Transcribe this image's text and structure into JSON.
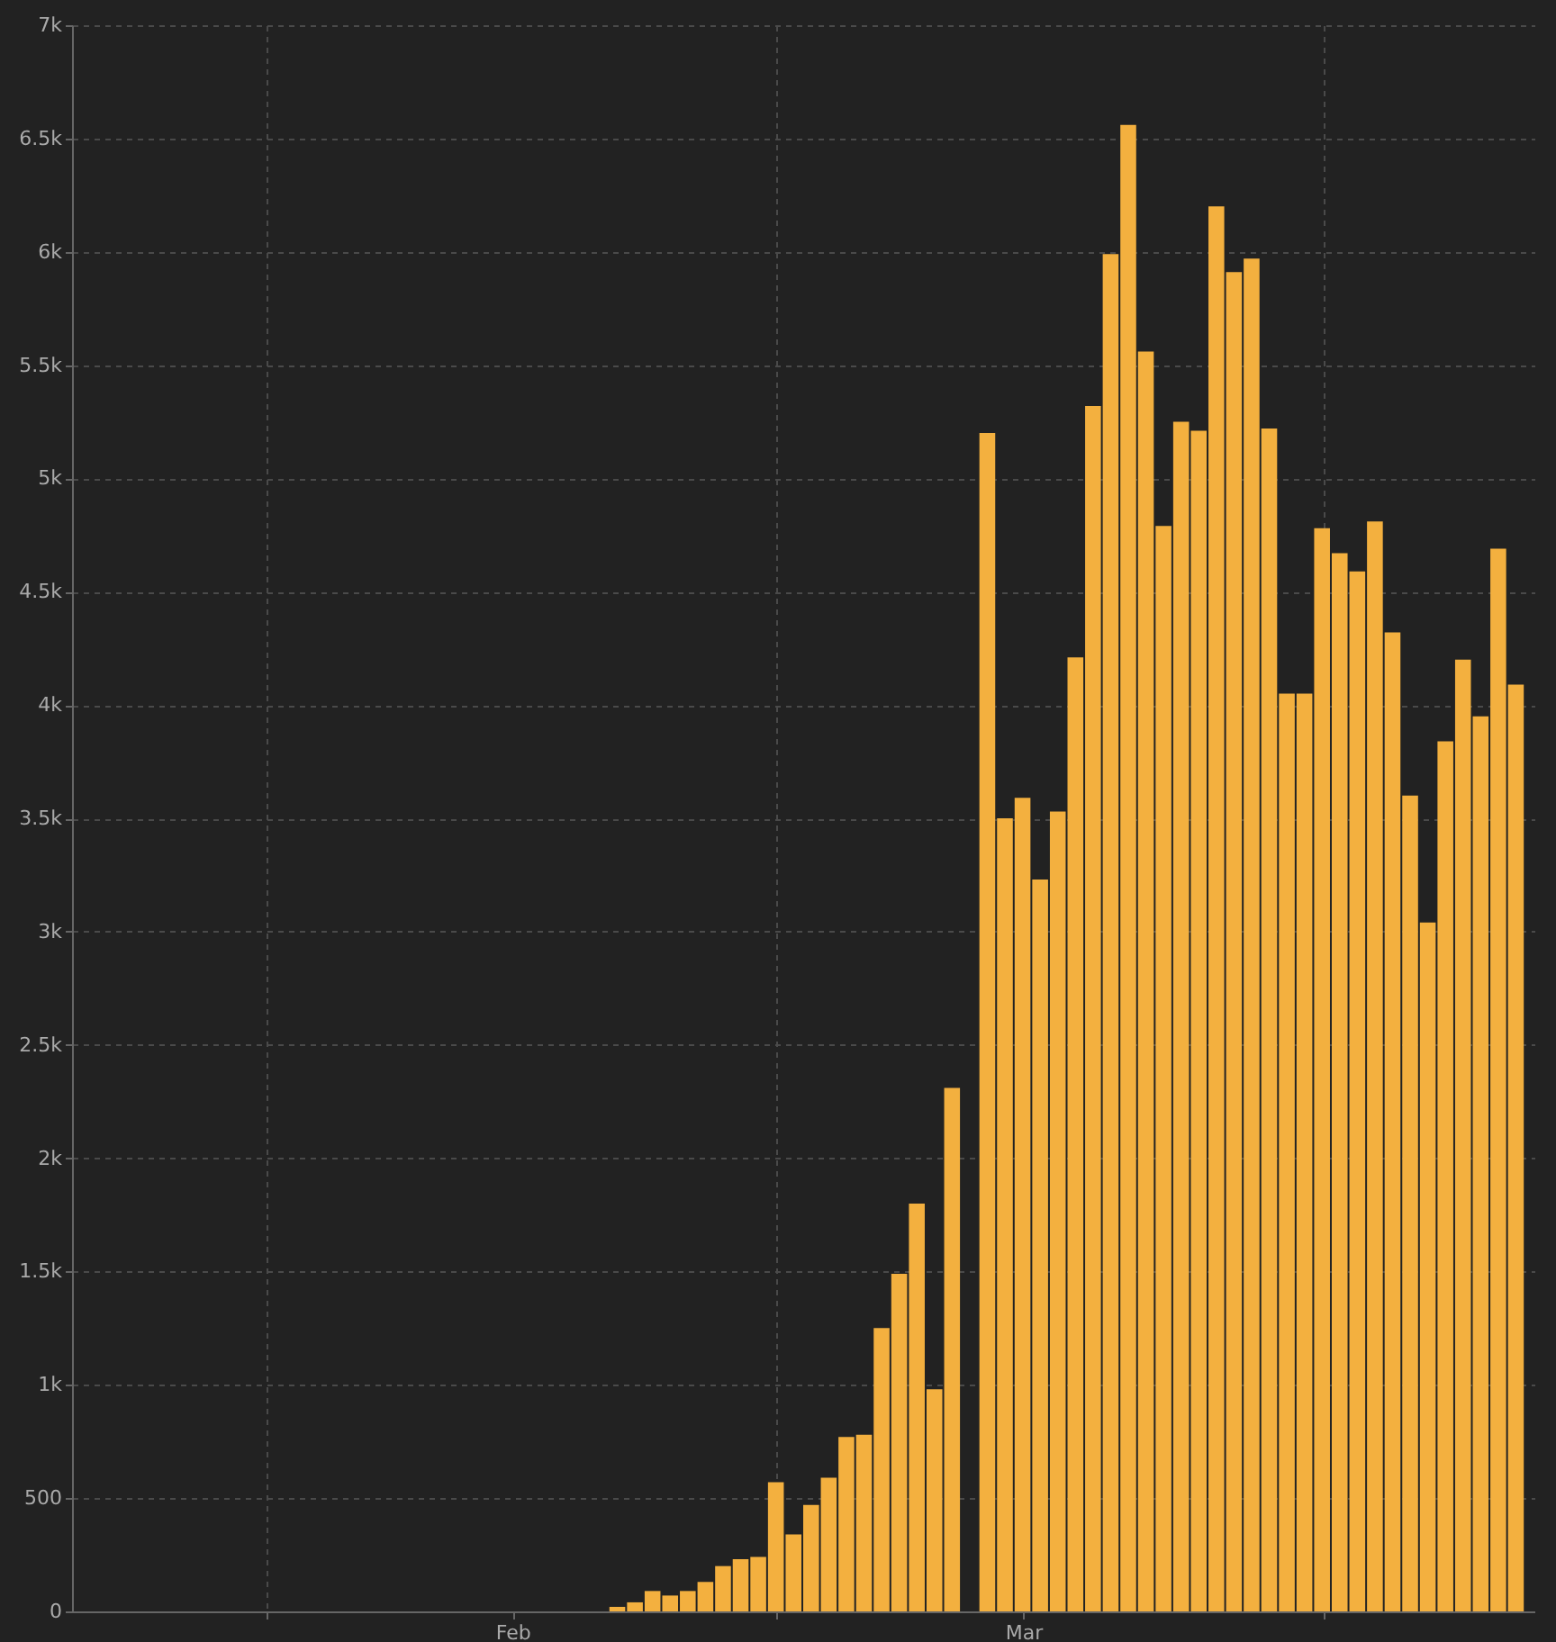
{
  "chart_data": {
    "type": "bar",
    "color": "#f3b03f",
    "x": [
      "--01-22",
      "--01-23",
      "--01-24",
      "--01-25",
      "--01-26",
      "--01-27",
      "--01-28",
      "--01-29",
      "--01-30",
      "--01-31",
      "--02-01",
      "--02-02",
      "--02-03",
      "--02-04",
      "--02-05",
      "--02-06",
      "--02-07",
      "--02-08",
      "--02-09",
      "--02-10",
      "--02-11",
      "--02-12",
      "--02-13",
      "--02-14",
      "--02-15",
      "--02-16",
      "--02-17",
      "--02-18",
      "--02-19",
      "--02-20",
      "--02-21",
      "--02-22",
      "--02-23",
      "--02-24",
      "--02-25",
      "--02-26",
      "--02-27",
      "--02-28",
      "--02-29",
      "--03-01",
      "--03-02",
      "--03-03",
      "--03-04",
      "--03-05",
      "--03-06",
      "--03-07",
      "--03-08",
      "--03-09",
      "--03-10",
      "--03-11",
      "--03-12",
      "--03-13",
      "--03-14",
      "--03-15",
      "--03-16",
      "--03-17",
      "--03-18",
      "--03-19",
      "--03-20",
      "--03-21",
      "--03-22",
      "--03-23",
      "--03-24",
      "--03-25",
      "--03-26",
      "--03-27",
      "--03-28",
      "--03-29",
      "--03-30",
      "--03-31",
      "--04-01",
      "--04-02",
      "--04-03",
      "--04-04",
      "--04-05",
      "--04-06",
      "--04-07",
      "--04-08",
      "--04-09",
      "--04-10",
      "--04-11",
      "--04-12"
    ],
    "values": [
      0,
      0,
      0,
      0,
      0,
      0,
      0,
      0,
      0,
      0,
      0,
      0,
      0,
      0,
      0,
      0,
      0,
      0,
      0,
      0,
      0,
      0,
      0,
      0,
      0,
      0,
      0,
      0,
      0,
      0,
      20,
      40,
      90,
      70,
      90,
      130,
      200,
      230,
      240,
      570,
      340,
      470,
      590,
      770,
      780,
      1250,
      1490,
      1800,
      980,
      2310,
      0,
      5200,
      3500,
      3590,
      3230,
      3530,
      4210,
      5320,
      5990,
      6560,
      5560,
      4790,
      5250,
      5210,
      6200,
      5910,
      5970,
      5220,
      4050,
      4050,
      4780,
      4670,
      4590,
      4810,
      4320,
      3600,
      3040,
      3840,
      4200,
      3950,
      4690,
      4090
    ],
    "xlim": [
      "--01-21",
      "--04-13"
    ],
    "xticks": [
      {
        "value": "--02-01",
        "label": null
      },
      {
        "value": "--02-15",
        "label": "Feb"
      },
      {
        "value": "--03-01",
        "label": null
      },
      {
        "value": "--03-15",
        "label": "Mar"
      },
      {
        "value": "--04-01",
        "label": null
      }
    ],
    "ylim": [
      0,
      7000
    ],
    "yticks": [
      0,
      500,
      {
        "value": 1000,
        "label": "1k"
      },
      {
        "value": 1500,
        "label": "1.5k"
      },
      {
        "value": 2000,
        "label": "2k"
      },
      {
        "value": 2500,
        "label": "2.5k"
      },
      {
        "value": 3000,
        "label": "3k"
      },
      {
        "value": 3500,
        "label": "3.5k"
      },
      {
        "value": 4000,
        "label": "4k"
      },
      {
        "value": 4500,
        "label": "4.5k"
      },
      {
        "value": 5000,
        "label": "5k"
      },
      {
        "value": 5500,
        "label": "5.5k"
      },
      {
        "value": 6000,
        "label": "6k"
      },
      {
        "value": 6500,
        "label": "6.5k"
      },
      {
        "value": 7000,
        "label": "7k"
      }
    ],
    "grid": true
  }
}
